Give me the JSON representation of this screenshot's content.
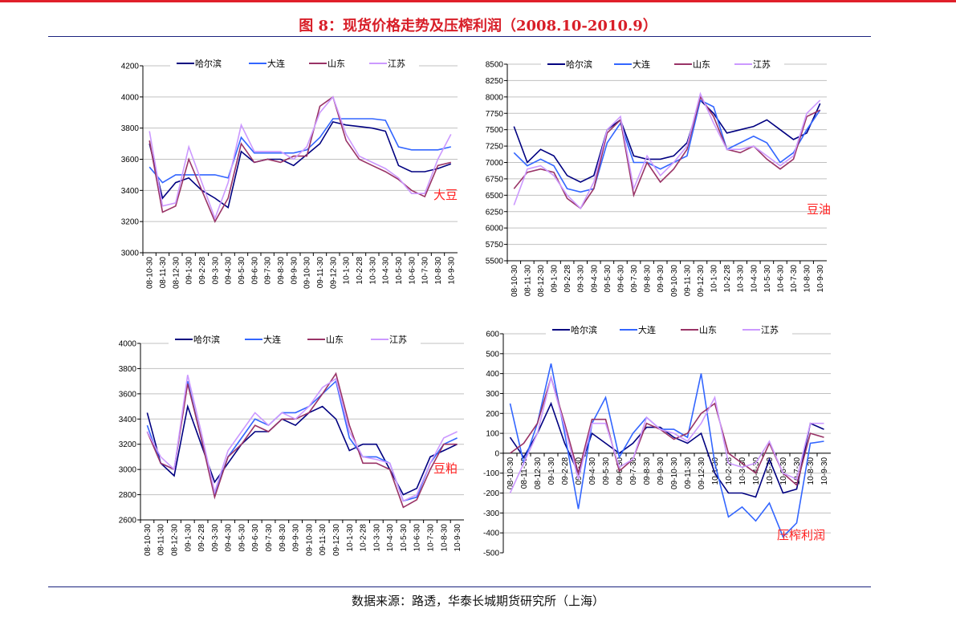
{
  "title": "图 8：现货价格走势及压榨利润（2008.10-2010.9）",
  "source": "数据来源：路透，华泰长城期货研究所（上海）",
  "colors": {
    "哈尔滨": "#000080",
    "大连": "#3366ff",
    "山东": "#993366",
    "江苏": "#cc99ff",
    "label": "#ff2020"
  },
  "chart_data": [
    {
      "type": "line",
      "title": "大豆",
      "ylim": [
        3000,
        4200
      ],
      "ystep": 200,
      "categories": [
        "08-10-30",
        "08-11-30",
        "08-12-30",
        "09-1-30",
        "09-2-28",
        "09-3-30",
        "09-4-30",
        "09-5-30",
        "09-6-30",
        "09-7-30",
        "09-8-30",
        "09-9-30",
        "09-10-30",
        "09-11-30",
        "09-12-30",
        "10-1-30",
        "10-2-28",
        "10-3-30",
        "10-4-30",
        "10-5-30",
        "10-6-30",
        "10-7-30",
        "10-8-30",
        "10-9-30"
      ],
      "legend_position": "top",
      "series": [
        {
          "name": "哈尔滨",
          "values": [
            3700,
            3350,
            3450,
            3480,
            3400,
            3350,
            3290,
            3650,
            3580,
            3600,
            3600,
            3560,
            3630,
            3700,
            3840,
            3820,
            3810,
            3800,
            3780,
            3560,
            3520,
            3520,
            3540,
            3570
          ]
        },
        {
          "name": "大连",
          "values": [
            3550,
            3450,
            3500,
            3500,
            3500,
            3500,
            3480,
            3740,
            3640,
            3640,
            3640,
            3640,
            3660,
            3740,
            3860,
            3860,
            3860,
            3860,
            3850,
            3680,
            3660,
            3660,
            3660,
            3680
          ]
        },
        {
          "name": "山东",
          "values": [
            3720,
            3260,
            3300,
            3600,
            3400,
            3200,
            3350,
            3700,
            3580,
            3600,
            3580,
            3620,
            3620,
            3940,
            4000,
            3720,
            3600,
            3560,
            3520,
            3470,
            3400,
            3360,
            3560,
            3580
          ]
        },
        {
          "name": "江苏",
          "values": [
            3780,
            3300,
            3320,
            3680,
            3450,
            3220,
            3450,
            3820,
            3650,
            3650,
            3650,
            3600,
            3680,
            3900,
            4000,
            3760,
            3620,
            3580,
            3540,
            3480,
            3380,
            3380,
            3600,
            3760
          ]
        }
      ]
    },
    {
      "type": "line",
      "title": "豆油",
      "ylim": [
        5500,
        8500
      ],
      "ystep": 250,
      "categories": [
        "08-10-30",
        "08-11-30",
        "08-12-30",
        "09-1-30",
        "09-2-28",
        "09-3-30",
        "09-4-30",
        "09-5-30",
        "09-6-30",
        "09-7-30",
        "09-8-30",
        "09-9-30",
        "09-10-30",
        "09-11-30",
        "09-12-30",
        "10-1-30",
        "10-2-28",
        "10-3-30",
        "10-4-30",
        "10-5-30",
        "10-6-30",
        "10-7-30",
        "10-8-30",
        "10-9-30"
      ],
      "legend_position": "top",
      "series": [
        {
          "name": "哈尔滨",
          "values": [
            7550,
            7000,
            7200,
            7100,
            6800,
            6700,
            6800,
            7500,
            7650,
            7100,
            7050,
            7050,
            7100,
            7300,
            7950,
            7750,
            7450,
            7500,
            7550,
            7650,
            7500,
            7350,
            7450,
            7900
          ]
        },
        {
          "name": "大连",
          "values": [
            7150,
            6950,
            7050,
            6950,
            6600,
            6550,
            6600,
            7300,
            7600,
            7000,
            7000,
            6900,
            7000,
            7100,
            7950,
            7850,
            7200,
            7300,
            7400,
            7300,
            7000,
            7150,
            7500,
            7800
          ]
        },
        {
          "name": "山东",
          "values": [
            6600,
            6850,
            6900,
            6850,
            6450,
            6300,
            6600,
            7450,
            7650,
            6500,
            7000,
            6700,
            6900,
            7200,
            8000,
            7700,
            7200,
            7150,
            7250,
            7050,
            6900,
            7050,
            7700,
            7800
          ]
        },
        {
          "name": "江苏",
          "values": [
            6350,
            6900,
            6950,
            6800,
            6500,
            6300,
            6700,
            7500,
            7700,
            6600,
            7100,
            6800,
            7000,
            7250,
            8050,
            7600,
            7200,
            7200,
            7250,
            7100,
            6950,
            7100,
            7750,
            7950
          ]
        }
      ]
    },
    {
      "type": "line",
      "title": "豆粕",
      "ylim": [
        2600,
        4000
      ],
      "ystep": 200,
      "categories": [
        "08-10-30",
        "08-11-30",
        "08-12-30",
        "09-1-30",
        "09-2-28",
        "09-3-30",
        "09-4-30",
        "09-5-30",
        "09-6-30",
        "09-7-30",
        "09-8-30",
        "09-9-30",
        "09-10-30",
        "09-11-30",
        "09-12-30",
        "10-1-30",
        "10-2-28",
        "10-3-30",
        "10-4-30",
        "10-5-30",
        "10-6-30",
        "10-7-30",
        "10-8-30",
        "10-9-30"
      ],
      "legend_position": "top",
      "series": [
        {
          "name": "哈尔滨",
          "values": [
            3450,
            3050,
            2950,
            3500,
            3200,
            2900,
            3050,
            3200,
            3300,
            3300,
            3400,
            3350,
            3450,
            3500,
            3400,
            3150,
            3200,
            3200,
            3000,
            2800,
            2850,
            3100,
            3150,
            3200
          ]
        },
        {
          "name": "大连",
          "values": [
            3350,
            3050,
            3000,
            3700,
            3250,
            2800,
            3100,
            3250,
            3400,
            3350,
            3450,
            3450,
            3500,
            3600,
            3700,
            3250,
            3100,
            3100,
            3050,
            2750,
            2780,
            3050,
            3200,
            3250
          ]
        },
        {
          "name": "山东",
          "values": [
            3300,
            3050,
            3000,
            3680,
            3250,
            2780,
            3100,
            3200,
            3350,
            3300,
            3400,
            3400,
            3450,
            3600,
            3760,
            3350,
            3050,
            3050,
            3000,
            2700,
            2760,
            3000,
            3200,
            3200
          ]
        },
        {
          "name": "江苏",
          "values": [
            3300,
            3100,
            3000,
            3750,
            3300,
            2820,
            3150,
            3300,
            3450,
            3350,
            3450,
            3400,
            3500,
            3650,
            3720,
            3300,
            3100,
            3080,
            3050,
            2750,
            2800,
            3050,
            3250,
            3300
          ]
        }
      ]
    },
    {
      "type": "line",
      "title": "压榨利润",
      "ylim": [
        -500,
        600
      ],
      "ystep": 100,
      "categories": [
        "08-10-30",
        "08-11-30",
        "08-12-30",
        "09-1-30",
        "09-2-28",
        "09-3-30",
        "09-4-30",
        "09-5-30",
        "09-6-30",
        "09-7-30",
        "09-8-30",
        "09-9-30",
        "09-10-30",
        "09-11-30",
        "09-12-30",
        "10-1-30",
        "10-2-28",
        "10-3-30",
        "10-4-30",
        "10-5-30",
        "10-6-30",
        "10-7-30",
        "10-8-30",
        "10-9-30"
      ],
      "legend_position": "top",
      "series": [
        {
          "name": "哈尔滨",
          "values": [
            80,
            -20,
            100,
            250,
            50,
            -100,
            100,
            50,
            0,
            50,
            130,
            130,
            80,
            50,
            100,
            -100,
            -200,
            -200,
            -220,
            -30,
            -200,
            -180,
            150,
            120
          ]
        },
        {
          "name": "大连",
          "values": [
            250,
            -50,
            150,
            450,
            100,
            -280,
            150,
            280,
            -20,
            100,
            180,
            120,
            120,
            80,
            400,
            -50,
            -320,
            -270,
            -340,
            -250,
            -420,
            -350,
            50,
            60
          ]
        },
        {
          "name": "山东",
          "values": [
            0,
            50,
            150,
            380,
            150,
            -100,
            170,
            170,
            -90,
            -30,
            150,
            120,
            70,
            100,
            200,
            250,
            0,
            -50,
            -100,
            50,
            -100,
            -160,
            100,
            80
          ]
        },
        {
          "name": "江苏",
          "values": [
            -200,
            -50,
            100,
            380,
            130,
            -130,
            150,
            150,
            -70,
            -30,
            180,
            120,
            100,
            60,
            150,
            280,
            -50,
            -70,
            -50,
            60,
            -100,
            -130,
            150,
            150
          ]
        }
      ]
    }
  ]
}
